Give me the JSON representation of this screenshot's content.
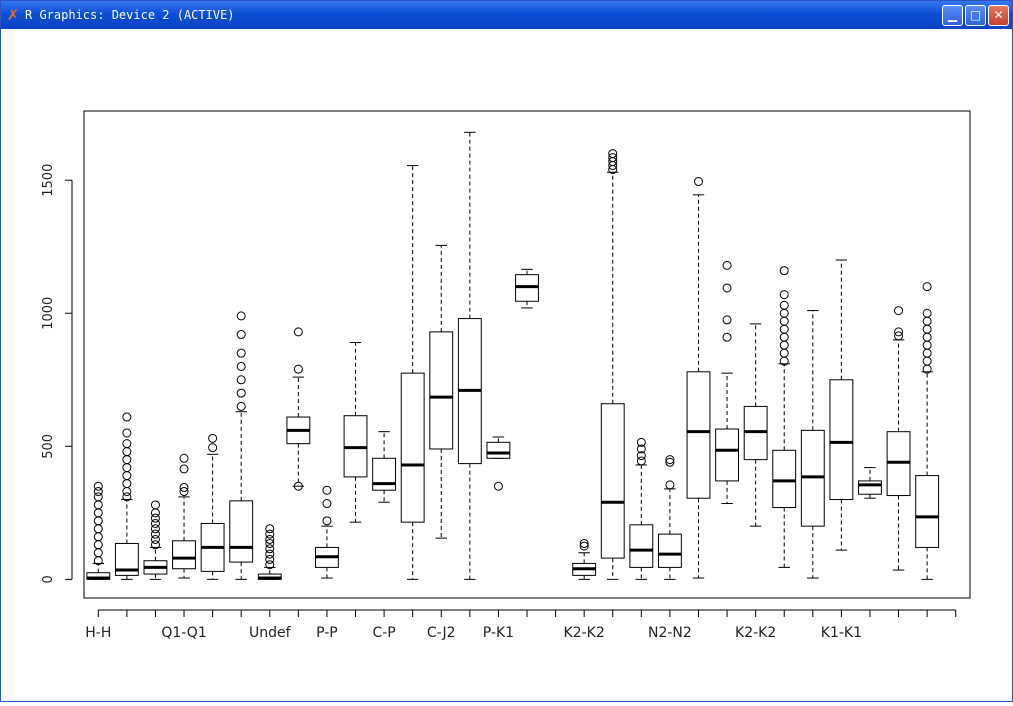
{
  "window": {
    "title": "R Graphics: Device 2 (ACTIVE)",
    "icon": "x-logo-icon",
    "buttons": {
      "minimize": "minimize-icon",
      "maximize": "maximize-icon",
      "close": "close-icon"
    }
  },
  "chart_data": {
    "type": "boxplot",
    "title": "",
    "xlabel": "",
    "ylabel": "",
    "ylim": [
      -70,
      1760
    ],
    "yticks": [
      0,
      500,
      1000,
      1500
    ],
    "xlim": [
      0.5,
      31.5
    ],
    "categories_labeled": [
      {
        "position": 1,
        "label": "H-H"
      },
      {
        "position": 4,
        "label": "Q1-Q1"
      },
      {
        "position": 7,
        "label": "Undef"
      },
      {
        "position": 9,
        "label": "P-P"
      },
      {
        "position": 11,
        "label": "C-P"
      },
      {
        "position": 13,
        "label": "C-J2"
      },
      {
        "position": 15,
        "label": "P-K1"
      },
      {
        "position": 18,
        "label": "K2-K2"
      },
      {
        "position": 21,
        "label": "N2-N2"
      },
      {
        "position": 24,
        "label": "K2-K2"
      },
      {
        "position": 27,
        "label": "K1-K1"
      }
    ],
    "boxes": [
      {
        "pos": 1,
        "low": 0,
        "q1": 0,
        "median": 5,
        "q3": 25,
        "high": 60,
        "outliers": [
          70,
          100,
          130,
          160,
          190,
          220,
          250,
          280,
          310,
          330,
          350
        ]
      },
      {
        "pos": 2,
        "low": 0,
        "q1": 15,
        "median": 35,
        "q3": 135,
        "high": 300,
        "outliers": [
          310,
          330,
          360,
          390,
          420,
          450,
          480,
          510,
          550,
          610
        ]
      },
      {
        "pos": 3,
        "low": 0,
        "q1": 20,
        "median": 45,
        "q3": 70,
        "high": 120,
        "outliers": [
          130,
          150,
          170,
          190,
          210,
          230,
          250,
          280
        ]
      },
      {
        "pos": 4,
        "low": 5,
        "q1": 40,
        "median": 80,
        "q3": 145,
        "high": 310,
        "outliers": [
          330,
          345,
          415,
          455
        ]
      },
      {
        "pos": 5,
        "low": 0,
        "q1": 30,
        "median": 120,
        "q3": 210,
        "high": 470,
        "outliers": [
          495,
          530
        ]
      },
      {
        "pos": 6,
        "low": 0,
        "q1": 65,
        "median": 120,
        "q3": 295,
        "high": 630,
        "outliers": [
          650,
          700,
          750,
          800,
          850,
          920,
          990
        ]
      },
      {
        "pos": 7,
        "low": 0,
        "q1": 0,
        "median": 5,
        "q3": 20,
        "high": 45,
        "outliers": [
          55,
          75,
          95,
          115,
          135,
          150,
          170,
          190
        ]
      },
      {
        "pos": 8,
        "low": 350,
        "q1": 510,
        "median": 560,
        "q3": 610,
        "high": 760,
        "outliers": [
          350,
          790,
          930
        ]
      },
      {
        "pos": 9,
        "low": 5,
        "q1": 45,
        "median": 85,
        "q3": 120,
        "high": 200,
        "outliers": [
          220,
          285,
          335
        ]
      },
      {
        "pos": 10,
        "low": 215,
        "q1": 385,
        "median": 495,
        "q3": 615,
        "high": 890,
        "outliers": []
      },
      {
        "pos": 11,
        "low": 290,
        "q1": 335,
        "median": 360,
        "q3": 455,
        "high": 555,
        "outliers": []
      },
      {
        "pos": 12,
        "low": 0,
        "q1": 215,
        "median": 430,
        "q3": 775,
        "high": 1555,
        "outliers": []
      },
      {
        "pos": 13,
        "low": 155,
        "q1": 490,
        "median": 685,
        "q3": 930,
        "high": 1255,
        "outliers": []
      },
      {
        "pos": 14,
        "low": 0,
        "q1": 435,
        "median": 710,
        "q3": 980,
        "high": 1680,
        "outliers": []
      },
      {
        "pos": 15,
        "low": 455,
        "q1": 455,
        "median": 475,
        "q3": 515,
        "high": 535,
        "outliers": [
          350
        ]
      },
      {
        "pos": 16,
        "low": 1020,
        "q1": 1045,
        "median": 1100,
        "q3": 1145,
        "high": 1165,
        "outliers": []
      },
      {
        "pos": 17,
        "low": null,
        "q1": null,
        "median": null,
        "q3": null,
        "high": null,
        "outliers": []
      },
      {
        "pos": 18,
        "low": 0,
        "q1": 15,
        "median": 40,
        "q3": 60,
        "high": 100,
        "outliers": [
          125,
          135
        ]
      },
      {
        "pos": 19,
        "low": 0,
        "q1": 80,
        "median": 290,
        "q3": 660,
        "high": 1530,
        "outliers": [
          1540,
          1555,
          1570,
          1585,
          1600
        ]
      },
      {
        "pos": 20,
        "low": 0,
        "q1": 45,
        "median": 110,
        "q3": 205,
        "high": 430,
        "outliers": [
          445,
          465,
          490,
          515
        ]
      },
      {
        "pos": 21,
        "low": 0,
        "q1": 45,
        "median": 95,
        "q3": 170,
        "high": 340,
        "outliers": [
          355,
          440,
          450
        ]
      },
      {
        "pos": 22,
        "low": 5,
        "q1": 305,
        "median": 555,
        "q3": 780,
        "high": 1445,
        "outliers": [
          1495
        ]
      },
      {
        "pos": 23,
        "low": 285,
        "q1": 370,
        "median": 485,
        "q3": 565,
        "high": 775,
        "outliers": [
          910,
          975,
          1095,
          1180
        ]
      },
      {
        "pos": 24,
        "low": 200,
        "q1": 450,
        "median": 555,
        "q3": 650,
        "high": 960,
        "outliers": []
      },
      {
        "pos": 25,
        "low": 45,
        "q1": 270,
        "median": 370,
        "q3": 485,
        "high": 810,
        "outliers": [
          820,
          850,
          880,
          910,
          940,
          970,
          1000,
          1030,
          1070,
          1160
        ]
      },
      {
        "pos": 26,
        "low": 5,
        "q1": 200,
        "median": 385,
        "q3": 560,
        "high": 1010,
        "outliers": []
      },
      {
        "pos": 27,
        "low": 110,
        "q1": 300,
        "median": 515,
        "q3": 750,
        "high": 1200,
        "outliers": []
      },
      {
        "pos": 28,
        "low": 305,
        "q1": 320,
        "median": 355,
        "q3": 370,
        "high": 420,
        "outliers": []
      },
      {
        "pos": 29,
        "low": 35,
        "q1": 315,
        "median": 440,
        "q3": 555,
        "high": 900,
        "outliers": [
          915,
          930,
          1010
        ]
      },
      {
        "pos": 30,
        "low": 0,
        "q1": 120,
        "median": 235,
        "q3": 390,
        "high": 780,
        "outliers": [
          790,
          820,
          850,
          880,
          910,
          940,
          970,
          1000,
          1100
        ]
      }
    ],
    "grid": false,
    "legend": "none"
  }
}
